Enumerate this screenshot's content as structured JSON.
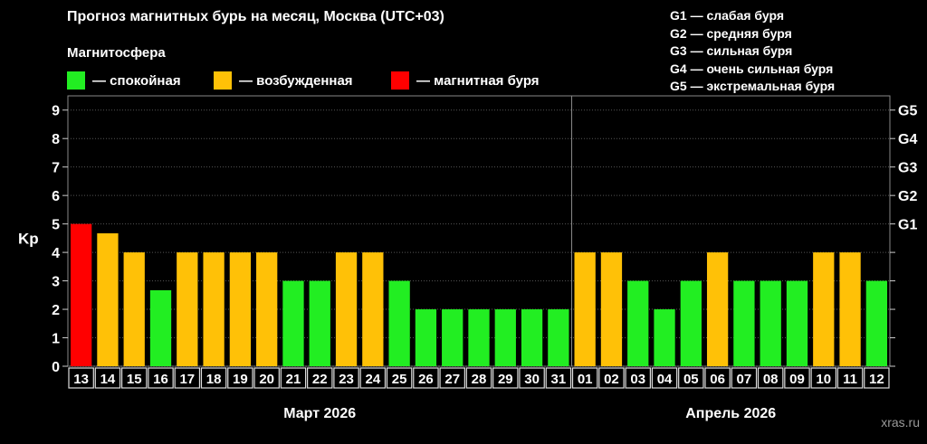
{
  "title": "Прогноз магнитных бурь на месяц, Москва (UTC+03)",
  "subtitle": "Магнитосфера",
  "legend": [
    {
      "label": "— спокойная",
      "color": "#22ee22"
    },
    {
      "label": "— возбужденная",
      "color": "#ffc107"
    },
    {
      "label": "— магнитная буря",
      "color": "#ff0000"
    }
  ],
  "g_legend": [
    "G1 — слабая буря",
    "G2 — средняя буря",
    "G3 — сильная буря",
    "G4 — очень сильная буря",
    "G5 — экстремальная буря"
  ],
  "watermark": "xras.ru",
  "chart_data": {
    "type": "bar",
    "ylabel": "Kp",
    "ylim": [
      0,
      9.5
    ],
    "y_ticks": [
      0,
      1,
      2,
      3,
      4,
      5,
      6,
      7,
      8,
      9
    ],
    "g_ticks": [
      {
        "label": "G1",
        "kp": 5
      },
      {
        "label": "G2",
        "kp": 6
      },
      {
        "label": "G3",
        "kp": 7
      },
      {
        "label": "G4",
        "kp": 8
      },
      {
        "label": "G5",
        "kp": 9
      }
    ],
    "categories": [
      "13",
      "14",
      "15",
      "16",
      "17",
      "18",
      "19",
      "20",
      "21",
      "22",
      "23",
      "24",
      "25",
      "26",
      "27",
      "28",
      "29",
      "30",
      "31",
      "01",
      "02",
      "03",
      "04",
      "05",
      "06",
      "07",
      "08",
      "09",
      "10",
      "11",
      "12"
    ],
    "values": [
      5,
      4.67,
      4,
      2.67,
      4,
      4,
      4,
      4,
      3,
      3,
      4,
      4,
      3,
      2,
      2,
      2,
      2,
      2,
      2,
      4,
      4,
      3,
      2,
      3,
      4,
      3,
      3,
      3,
      4,
      4,
      3
    ],
    "colors": {
      "calm": "#22ee22",
      "active": "#ffc107",
      "storm": "#ff0000"
    },
    "months": [
      {
        "label": "Март 2026",
        "start": 0,
        "count": 19
      },
      {
        "label": "Апрель 2026",
        "start": 19,
        "count": 12
      }
    ],
    "grid": true
  }
}
